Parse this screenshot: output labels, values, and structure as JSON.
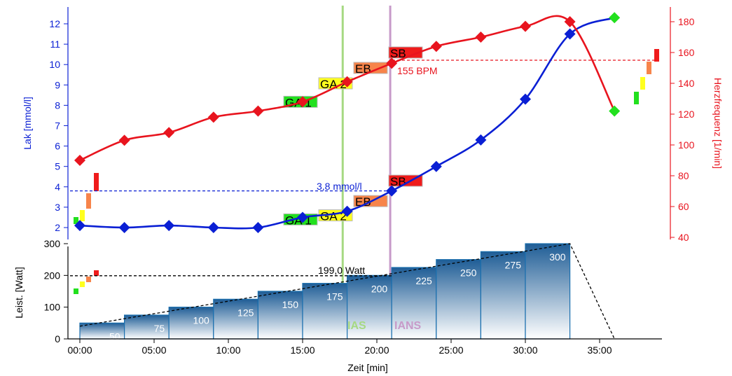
{
  "chart_data": [
    {
      "type": "line",
      "x_unit": "min",
      "ylabel": "Lak [mmol/l]",
      "y2label": "Herzfrequenz [1/min]",
      "ylim": [
        1.5,
        12.8
      ],
      "y2lim": [
        40,
        190
      ],
      "yticks": [
        "2",
        "3",
        "4",
        "5",
        "6",
        "7",
        "8",
        "9",
        "10",
        "11",
        "12"
      ],
      "y2ticks": [
        "40",
        "60",
        "80",
        "100",
        "120",
        "140",
        "160",
        "180"
      ],
      "colors": {
        "lactate": "#0a1fd4",
        "heart_rate": "#e8141e"
      },
      "series": [
        {
          "key": "lactate",
          "x": [
            0,
            3,
            6,
            9,
            12,
            15,
            18,
            21,
            24,
            27,
            30,
            33,
            36
          ],
          "values": [
            2.1,
            2.0,
            2.1,
            2.0,
            2.0,
            2.5,
            2.8,
            3.8,
            5.0,
            6.3,
            8.3,
            11.5,
            7.4
          ]
        },
        {
          "key": "heart_rate",
          "x": [
            0,
            3,
            6,
            9,
            12,
            15,
            18,
            21,
            24,
            27,
            30,
            33,
            36
          ],
          "values": [
            90,
            103,
            108,
            118,
            122,
            128,
            141,
            153,
            164,
            170,
            177,
            180,
            182
          ]
        }
      ],
      "threshold_lines": [
        {
          "axis": "y",
          "value": 3.8,
          "label": "3,8 mmol/l",
          "color": "#0a1fd4"
        },
        {
          "axis": "y2",
          "value": 155,
          "label": "155 BPM",
          "color": "#e8141e"
        }
      ],
      "zone_blocks_lactate": [
        {
          "label": "GA 1",
          "color": "#22e01e",
          "value": 2.4
        },
        {
          "label": "GA 2",
          "color": "#ffff1e",
          "value": 2.6
        },
        {
          "label": "EB",
          "color": "#f7844a",
          "value": 3.3
        },
        {
          "label": "SB",
          "color": "#ef1b1b",
          "value": 4.3
        }
      ],
      "zone_blocks_hr": [
        {
          "label": "GA 1",
          "color": "#22e01e",
          "value": 128
        },
        {
          "label": "GA 2",
          "color": "#ffff1e",
          "value": 140
        },
        {
          "label": "EB",
          "color": "#f7844a",
          "value": 150
        },
        {
          "label": "SB",
          "color": "#ef1b1b",
          "value": 160
        }
      ]
    },
    {
      "type": "bar",
      "ylabel": "Leist. [Watt]",
      "xlabel": "Zeit [min]",
      "ylim": [
        0,
        300
      ],
      "yticks": [
        "0",
        "100",
        "200",
        "300"
      ],
      "xticks": [
        "00:00",
        "05:00",
        "10:00",
        "15:00",
        "20:00",
        "25:00",
        "30:00",
        "35:00"
      ],
      "x_tick_values": [
        0,
        5,
        10,
        15,
        20,
        25,
        30,
        35
      ],
      "bar_color": "#1f5d96",
      "steps": [
        {
          "start": 0,
          "end": 3,
          "value": 50,
          "label": "50"
        },
        {
          "start": 3,
          "end": 6,
          "value": 75,
          "label": "75"
        },
        {
          "start": 6,
          "end": 9,
          "value": 100,
          "label": "100"
        },
        {
          "start": 9,
          "end": 12,
          "value": 125,
          "label": "125"
        },
        {
          "start": 12,
          "end": 15,
          "value": 150,
          "label": "150"
        },
        {
          "start": 15,
          "end": 18,
          "value": 175,
          "label": "175"
        },
        {
          "start": 18,
          "end": 21,
          "value": 200,
          "label": "200"
        },
        {
          "start": 21,
          "end": 24,
          "value": 225,
          "label": "225"
        },
        {
          "start": 24,
          "end": 27,
          "value": 250,
          "label": "250"
        },
        {
          "start": 27,
          "end": 30,
          "value": 275,
          "label": "275"
        },
        {
          "start": 30,
          "end": 33,
          "value": 300,
          "label": "300"
        }
      ],
      "threshold_line": {
        "value": 199,
        "label": "199,0 Watt"
      },
      "trend_line": [
        {
          "x": 0,
          "y": 40
        },
        {
          "x": 33,
          "y": 300
        },
        {
          "x": 36,
          "y": 0
        }
      ]
    }
  ],
  "markers": [
    {
      "label": "IAS",
      "x": 17.7,
      "color": "#a6d982"
    },
    {
      "label": "IANS",
      "x": 20.9,
      "color": "#c79ac9"
    }
  ]
}
